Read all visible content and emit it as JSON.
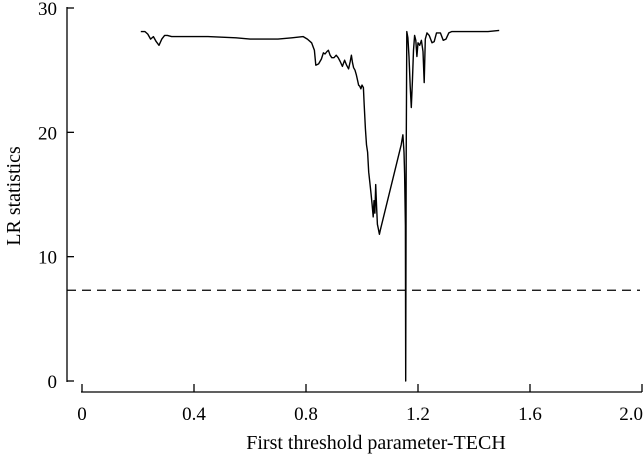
{
  "chart_data": {
    "type": "line",
    "title": "",
    "xlabel": "First threshold parameter-TECH",
    "ylabel": "LR statistics",
    "xlim": [
      0,
      2.0
    ],
    "ylim": [
      0,
      30
    ],
    "x_ticks": [
      0,
      0.4,
      0.8,
      1.2,
      1.6,
      2.0
    ],
    "x_tick_labels": [
      "0",
      "0.4",
      "0.8",
      "1.2",
      "1.6",
      "2.0"
    ],
    "y_ticks": [
      0,
      10,
      20,
      30
    ],
    "y_tick_labels": [
      "0",
      "10",
      "20",
      "30"
    ],
    "grid": false,
    "legend": "none",
    "reference_line": {
      "y": 7.3,
      "style": "dashed"
    },
    "series": [
      {
        "color": "#000000",
        "points": [
          [
            0.21,
            28.1
          ],
          [
            0.225,
            28.1
          ],
          [
            0.235,
            27.9
          ],
          [
            0.245,
            27.5
          ],
          [
            0.255,
            27.7
          ],
          [
            0.265,
            27.3
          ],
          [
            0.275,
            27.0
          ],
          [
            0.285,
            27.5
          ],
          [
            0.295,
            27.8
          ],
          [
            0.305,
            27.8
          ],
          [
            0.32,
            27.7
          ],
          [
            0.35,
            27.7
          ],
          [
            0.45,
            27.7
          ],
          [
            0.55,
            27.6
          ],
          [
            0.6,
            27.5
          ],
          [
            0.7,
            27.5
          ],
          [
            0.75,
            27.6
          ],
          [
            0.79,
            27.7
          ],
          [
            0.805,
            27.5
          ],
          [
            0.82,
            27.2
          ],
          [
            0.83,
            26.6
          ],
          [
            0.835,
            25.4
          ],
          [
            0.845,
            25.5
          ],
          [
            0.855,
            25.9
          ],
          [
            0.862,
            26.4
          ],
          [
            0.868,
            26.3
          ],
          [
            0.875,
            26.5
          ],
          [
            0.88,
            26.6
          ],
          [
            0.886,
            26.2
          ],
          [
            0.892,
            26.0
          ],
          [
            0.9,
            26.0
          ],
          [
            0.908,
            26.2
          ],
          [
            0.915,
            26.0
          ],
          [
            0.922,
            25.7
          ],
          [
            0.93,
            25.3
          ],
          [
            0.938,
            25.8
          ],
          [
            0.945,
            25.4
          ],
          [
            0.952,
            25.1
          ],
          [
            0.958,
            25.7
          ],
          [
            0.962,
            26.2
          ],
          [
            0.966,
            25.6
          ],
          [
            0.97,
            25.2
          ],
          [
            0.975,
            25.0
          ],
          [
            0.98,
            24.6
          ],
          [
            0.985,
            24.1
          ],
          [
            0.988,
            23.8
          ],
          [
            0.992,
            23.7
          ],
          [
            0.996,
            23.5
          ],
          [
            1.0,
            23.8
          ],
          [
            1.005,
            23.6
          ],
          [
            1.008,
            22.2
          ],
          [
            1.012,
            20.3
          ],
          [
            1.016,
            19.0
          ],
          [
            1.02,
            18.4
          ],
          [
            1.024,
            16.8
          ],
          [
            1.028,
            16.0
          ],
          [
            1.032,
            15.1
          ],
          [
            1.036,
            14.2
          ],
          [
            1.04,
            13.2
          ],
          [
            1.043,
            14.5
          ],
          [
            1.046,
            13.5
          ],
          [
            1.049,
            15.8
          ],
          [
            1.052,
            14.0
          ],
          [
            1.055,
            12.6
          ],
          [
            1.058,
            12.3
          ],
          [
            1.062,
            11.8
          ],
          [
            1.065,
            12.1
          ],
          [
            1.14,
            19.0
          ],
          [
            1.146,
            19.8
          ],
          [
            1.15,
            18.4
          ],
          [
            1.152,
            16.7
          ],
          [
            1.155,
            12.5
          ],
          [
            1.156,
            0.0
          ],
          [
            1.158,
            18.0
          ],
          [
            1.16,
            28.1
          ],
          [
            1.164,
            27.6
          ],
          [
            1.168,
            26.1
          ],
          [
            1.172,
            23.7
          ],
          [
            1.176,
            22.0
          ],
          [
            1.18,
            24.1
          ],
          [
            1.184,
            26.6
          ],
          [
            1.188,
            27.8
          ],
          [
            1.192,
            27.4
          ],
          [
            1.196,
            26.1
          ],
          [
            1.2,
            27.2
          ],
          [
            1.206,
            27.0
          ],
          [
            1.212,
            27.4
          ],
          [
            1.218,
            26.5
          ],
          [
            1.222,
            24.0
          ],
          [
            1.226,
            27.5
          ],
          [
            1.232,
            28.0
          ],
          [
            1.24,
            27.8
          ],
          [
            1.25,
            27.2
          ],
          [
            1.258,
            27.3
          ],
          [
            1.266,
            28.0
          ],
          [
            1.28,
            28.0
          ],
          [
            1.29,
            27.4
          ],
          [
            1.3,
            27.5
          ],
          [
            1.31,
            28.0
          ],
          [
            1.32,
            28.1
          ],
          [
            1.35,
            28.1
          ],
          [
            1.4,
            28.1
          ],
          [
            1.45,
            28.1
          ],
          [
            1.49,
            28.2
          ]
        ]
      }
    ]
  }
}
